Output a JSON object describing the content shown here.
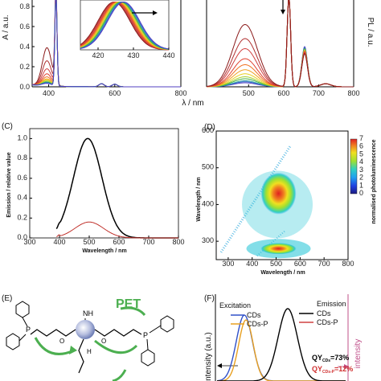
{
  "chart_data": [
    {
      "id": "A",
      "type": "line",
      "ylabel": "A / a.u.",
      "xlim": [
        350,
        800
      ],
      "ylim": [
        0,
        1
      ],
      "xticks": [
        400,
        600,
        800
      ],
      "yticks": [
        0.0,
        0.2,
        0.4,
        0.6,
        0.8
      ],
      "colors": [
        "#8b1a1a",
        "#b03030",
        "#d04040",
        "#e04030",
        "#f07020",
        "#f0a020",
        "#e8d020",
        "#a8d030",
        "#40b040",
        "#30a0a0",
        "#3060d0",
        "#5040c0"
      ],
      "series_peak_400": [
        0.38,
        0.25,
        0.17,
        0.12,
        0.09,
        0.07,
        0.06,
        0.05,
        0.04,
        0.035,
        0.03,
        0.025
      ],
      "inset": {
        "xticks": [
          420,
          430,
          440
        ],
        "xlim": [
          415,
          440
        ]
      }
    },
    {
      "id": "B",
      "type": "line",
      "ylabel": "PL / a.u.",
      "xlim": [
        350,
        800
      ],
      "ylim": [
        0,
        1
      ],
      "xticks": [
        500,
        600,
        700,
        800
      ],
      "series_peak_480": [
        0.62,
        0.48,
        0.38,
        0.28,
        0.22,
        0.17,
        0.13,
        0.1,
        0.08,
        0.06,
        0.05,
        0.04
      ],
      "series_peak_660": [
        0.33,
        0.33,
        0.34,
        0.35,
        0.35,
        0.36,
        0.36,
        0.37,
        0.38,
        0.38,
        0.39,
        0.4
      ]
    },
    {
      "id": "shared",
      "xlabel": "λ / nm"
    },
    {
      "id": "C",
      "type": "line",
      "xlabel": "Wavelength / nm",
      "ylabel": "Emission / relative value",
      "xlim": [
        300,
        800
      ],
      "ylim": [
        0,
        1.1
      ],
      "xticks": [
        300,
        400,
        500,
        600,
        700,
        800
      ],
      "yticks": [
        0.0,
        0.2,
        0.4,
        0.6,
        0.8,
        1.0
      ],
      "series": [
        {
          "color": "#000000",
          "peak_x": 495,
          "peak_y": 1.0
        },
        {
          "color": "#c0302a",
          "peak_x": 500,
          "peak_y": 0.16
        }
      ]
    },
    {
      "id": "D",
      "type": "heatmap",
      "xlabel": "Wavelength / nm",
      "ylabel": "Wavelength / nm",
      "colorbar_label": "normalised photoluminescence",
      "xlim": [
        250,
        800
      ],
      "ylim": [
        250,
        600
      ],
      "xticks": [
        300,
        400,
        500,
        600,
        700,
        800
      ],
      "yticks": [
        300,
        400,
        500,
        600
      ],
      "colorbar_ticks": [
        0,
        1,
        2,
        3,
        4,
        5,
        6,
        7
      ],
      "hotspots": [
        {
          "x": 510,
          "y": 430,
          "level": 7
        },
        {
          "x": 510,
          "y": 280,
          "level": 6.5
        }
      ]
    },
    {
      "id": "F",
      "type": "line",
      "ylabel_left": "Intensity (a.u.)",
      "ylabel_right": "intensity",
      "legend_excitation": {
        "title": "Excitation",
        "entries": [
          {
            "name": "CDs",
            "color": "#3050c8"
          },
          {
            "name": "CDs-P",
            "color": "#e8a020"
          }
        ]
      },
      "legend_emission": {
        "title": "Emission",
        "entries": [
          {
            "name": "CDs",
            "color": "#000000"
          },
          {
            "name": "CDs-P",
            "color": "#d04040"
          }
        ]
      },
      "qy_cds": {
        "prefix": "QY",
        "sub": "CDs",
        "value": "=73%"
      },
      "qy_cdsp": {
        "prefix": "QY",
        "sub": "CDs-P",
        "value": "=12%"
      }
    }
  ],
  "panels": {
    "c": "(C)",
    "d": "(D)",
    "e": "(E)",
    "f": "(F)"
  },
  "scheme": {
    "pet": "PET",
    "nh": "NH",
    "o": "O",
    "hn": "H",
    "p": "P"
  }
}
